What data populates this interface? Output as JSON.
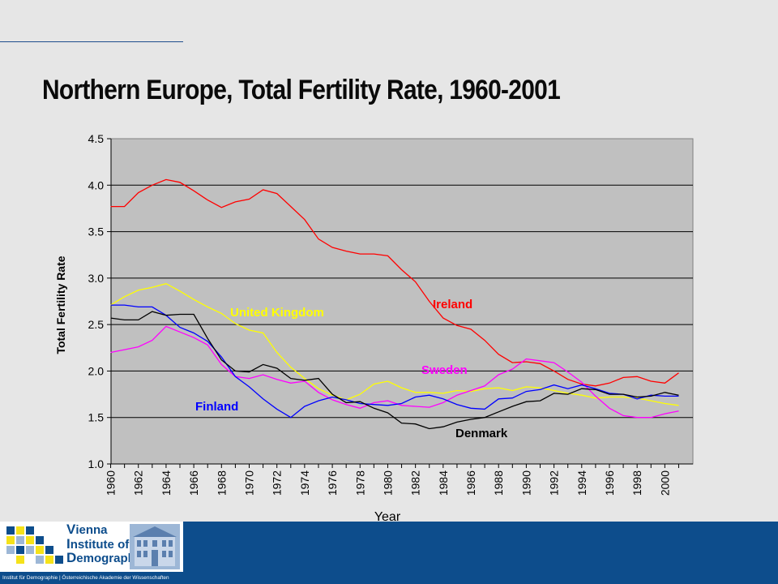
{
  "title": "Northern Europe, Total Fertility Rate, 1960-2001",
  "colors": {
    "plot_bg": "#c0c0c0",
    "Ireland": "#ff0000",
    "United Kingdom": "#ffff00",
    "Sweden": "#ff00ff",
    "Finland": "#0000ff",
    "Denmark": "#000000",
    "footer": "#0d4d8c"
  },
  "chart_data": {
    "type": "line",
    "xlabel": "Year",
    "ylabel": "Total Fertility Rate",
    "ylim": [
      1.0,
      4.5
    ],
    "yticks": [
      1.0,
      1.5,
      2.0,
      2.5,
      3.0,
      3.5,
      4.0,
      4.5
    ],
    "ytick_labels": [
      "1.0",
      "1.5",
      "2.0",
      "2.5",
      "3.0",
      "3.5",
      "4.0",
      "4.5"
    ],
    "xlim": [
      1960,
      2001
    ],
    "xtick_labels": [
      "1960",
      "1962",
      "1964",
      "1966",
      "1968",
      "1970",
      "1972",
      "1974",
      "1976",
      "1978",
      "1980",
      "1982",
      "1984",
      "1986",
      "1988",
      "1990",
      "1992",
      "1994",
      "1996",
      "1998",
      "2000"
    ],
    "grid": true,
    "legend": "inline labels",
    "x": [
      1960,
      1961,
      1962,
      1963,
      1964,
      1965,
      1966,
      1967,
      1968,
      1969,
      1970,
      1971,
      1972,
      1973,
      1974,
      1975,
      1976,
      1977,
      1978,
      1979,
      1980,
      1981,
      1982,
      1983,
      1984,
      1985,
      1986,
      1987,
      1988,
      1989,
      1990,
      1991,
      1992,
      1993,
      1994,
      1995,
      1996,
      1997,
      1998,
      1999,
      2000,
      2001
    ],
    "series": [
      {
        "name": "Ireland",
        "values": [
          3.77,
          3.77,
          3.92,
          4.0,
          4.06,
          4.03,
          3.94,
          3.84,
          3.76,
          3.82,
          3.85,
          3.95,
          3.91,
          3.77,
          3.63,
          3.42,
          3.33,
          3.29,
          3.26,
          3.26,
          3.24,
          3.09,
          2.96,
          2.75,
          2.57,
          2.49,
          2.45,
          2.33,
          2.18,
          2.09,
          2.1,
          2.08,
          2.0,
          1.91,
          1.86,
          1.84,
          1.87,
          1.93,
          1.94,
          1.89,
          1.87,
          1.98
        ]
      },
      {
        "name": "United Kingdom",
        "values": [
          2.71,
          2.8,
          2.87,
          2.9,
          2.94,
          2.86,
          2.77,
          2.69,
          2.62,
          2.51,
          2.44,
          2.41,
          2.2,
          2.04,
          1.92,
          1.81,
          1.74,
          1.69,
          1.75,
          1.86,
          1.89,
          1.82,
          1.77,
          1.77,
          1.76,
          1.79,
          1.78,
          1.81,
          1.82,
          1.79,
          1.83,
          1.82,
          1.79,
          1.76,
          1.74,
          1.71,
          1.72,
          1.72,
          1.71,
          1.68,
          1.65,
          1.63
        ]
      },
      {
        "name": "Sweden",
        "values": [
          2.2,
          2.23,
          2.26,
          2.33,
          2.48,
          2.42,
          2.36,
          2.28,
          2.07,
          1.94,
          1.92,
          1.96,
          1.91,
          1.87,
          1.89,
          1.77,
          1.69,
          1.64,
          1.6,
          1.66,
          1.68,
          1.63,
          1.62,
          1.61,
          1.66,
          1.74,
          1.79,
          1.84,
          1.96,
          2.02,
          2.13,
          2.11,
          2.09,
          1.99,
          1.88,
          1.73,
          1.6,
          1.52,
          1.5,
          1.5,
          1.54,
          1.57
        ]
      },
      {
        "name": "Finland",
        "values": [
          2.71,
          2.71,
          2.69,
          2.69,
          2.6,
          2.47,
          2.41,
          2.32,
          2.15,
          1.94,
          1.83,
          1.7,
          1.59,
          1.5,
          1.62,
          1.68,
          1.72,
          1.69,
          1.65,
          1.64,
          1.63,
          1.65,
          1.72,
          1.74,
          1.7,
          1.64,
          1.6,
          1.59,
          1.7,
          1.71,
          1.78,
          1.8,
          1.85,
          1.81,
          1.85,
          1.81,
          1.76,
          1.75,
          1.7,
          1.74,
          1.73,
          1.73
        ]
      },
      {
        "name": "Denmark",
        "values": [
          2.57,
          2.55,
          2.55,
          2.64,
          2.6,
          2.61,
          2.61,
          2.35,
          2.12,
          2.0,
          1.99,
          2.07,
          2.03,
          1.92,
          1.9,
          1.92,
          1.75,
          1.66,
          1.67,
          1.6,
          1.55,
          1.44,
          1.43,
          1.38,
          1.4,
          1.45,
          1.48,
          1.5,
          1.56,
          1.62,
          1.67,
          1.68,
          1.76,
          1.75,
          1.81,
          1.8,
          1.75,
          1.75,
          1.72,
          1.73,
          1.77,
          1.74
        ]
      }
    ],
    "annotations": [
      {
        "series": "Ireland",
        "text": "Ireland"
      },
      {
        "series": "United Kingdom",
        "text": "United Kingdom"
      },
      {
        "series": "Sweden",
        "text": "Sweden"
      },
      {
        "series": "Finland",
        "text": "Finland"
      },
      {
        "series": "Denmark",
        "text": "Denmark"
      }
    ]
  },
  "footer": {
    "logo_line1": "ienna",
    "logo_line2": "nstitute of",
    "logo_line3": "emography",
    "logo_initial1": "V",
    "logo_initial2": "I",
    "logo_initial3": "D",
    "caption": "Institut für Demographie | Österreichische Akademie der Wissenschaften"
  }
}
